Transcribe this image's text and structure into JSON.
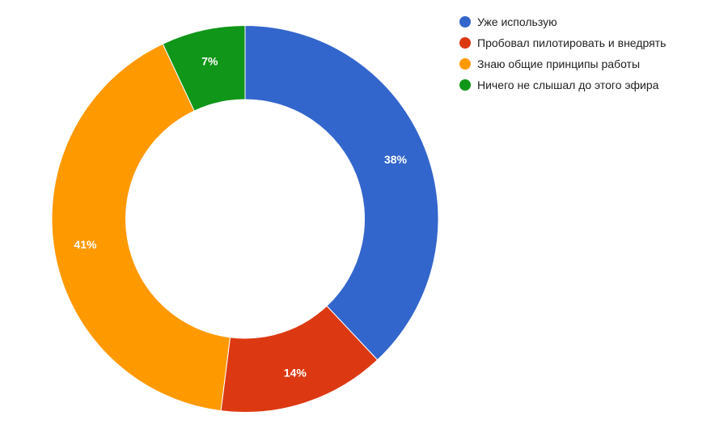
{
  "chart_data": {
    "type": "pie",
    "donut": true,
    "categories": [
      "Уже использую",
      "Пробовал пилотировать и внедрять",
      "Знаю общие принципы работы",
      "Ничего не слышал до этого эфира"
    ],
    "values": [
      38,
      14,
      41,
      7
    ],
    "labels": [
      "38%",
      "14%",
      "41%",
      "7%"
    ],
    "colors": [
      "#3366cc",
      "#dc3912",
      "#ff9900",
      "#109618"
    ],
    "legend_position": "right"
  }
}
